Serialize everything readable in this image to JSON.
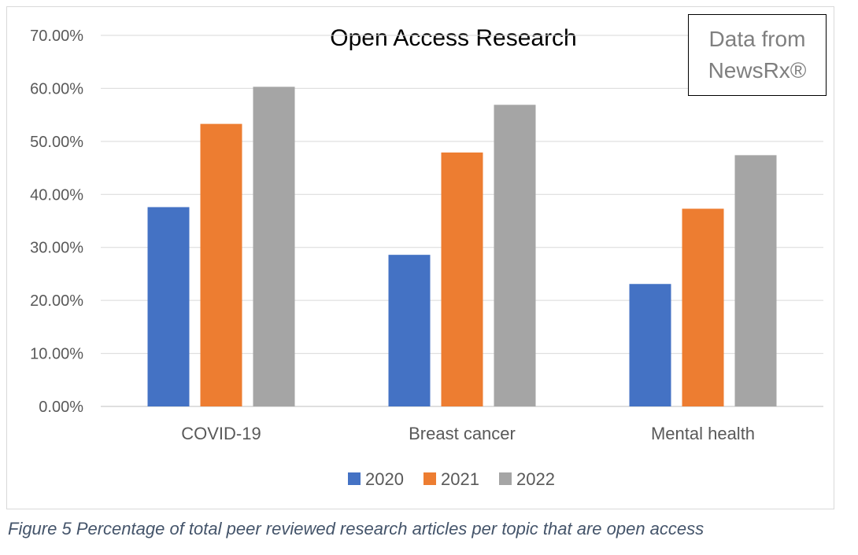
{
  "chart_data": {
    "type": "bar",
    "title": "Open Access Research",
    "categories": [
      "COVID-19",
      "Breast cancer",
      "Mental health"
    ],
    "series": [
      {
        "name": "2020",
        "color": "#4472c4",
        "values": [
          37.6,
          28.6,
          23.1
        ]
      },
      {
        "name": "2021",
        "color": "#ed7d31",
        "values": [
          53.3,
          47.9,
          37.3
        ]
      },
      {
        "name": "2022",
        "color": "#a5a5a5",
        "values": [
          60.3,
          56.9,
          47.4
        ]
      }
    ],
    "ylim": [
      0,
      70
    ],
    "yticks": [
      "0.00%",
      "10.00%",
      "20.00%",
      "30.00%",
      "40.00%",
      "50.00%",
      "60.00%",
      "70.00%"
    ],
    "grid": true,
    "legend_position": "bottom",
    "annotation": "Data from NewsRx®"
  },
  "caption": "Figure 5 Percentage of total peer reviewed research articles per topic that are open access"
}
